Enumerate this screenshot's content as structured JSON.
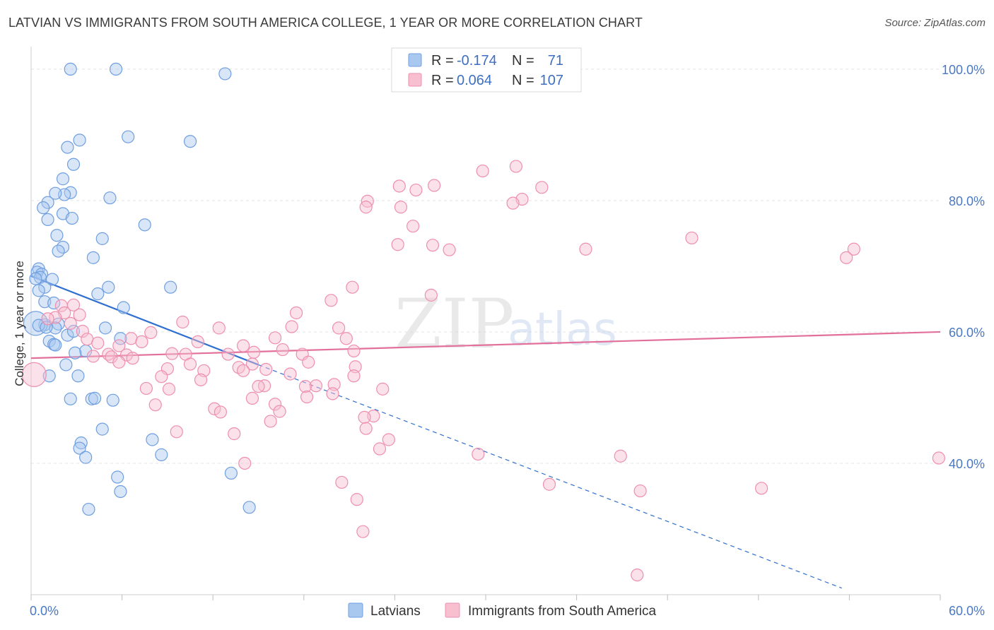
{
  "title": "LATVIAN VS IMMIGRANTS FROM SOUTH AMERICA COLLEGE, 1 YEAR OR MORE CORRELATION CHART",
  "source": "Source: ZipAtlas.com",
  "watermark": {
    "zip": "ZIP",
    "atlas": "atlas"
  },
  "legend_top": [
    {
      "r_label": "R =",
      "r_value": "-0.174",
      "n_label": "N =",
      "n_value": "71",
      "color": "#a9c8f0",
      "stroke": "#6f9fe0"
    },
    {
      "r_label": "R =",
      "r_value": "0.064",
      "n_label": "N =",
      "n_value": "107",
      "color": "#f7bfd0",
      "stroke": "#ee8fae"
    }
  ],
  "legend_bottom": [
    {
      "label": "Latvians",
      "color": "#a9c8f0",
      "stroke": "#6f9fe0"
    },
    {
      "label": "Immigrants from South America",
      "color": "#f7bfd0",
      "stroke": "#ee8fae"
    }
  ],
  "chart_data": {
    "type": "scatter",
    "xlabel": "",
    "ylabel": "College, 1 year or more",
    "xlim": [
      0,
      60
    ],
    "ylim": [
      20,
      103
    ],
    "x_tick_labels": [
      "0.0%",
      "60.0%"
    ],
    "y_ticks": [
      40,
      60,
      80,
      100
    ],
    "y_tick_labels": [
      "40.0%",
      "60.0%",
      "80.0%",
      "100.0%"
    ],
    "grid": true,
    "series": [
      {
        "name": "Latvians",
        "color": "#6f9fe0",
        "fill": "#a9c8f0",
        "trend": {
          "x0": 0.0,
          "y0": 68.5,
          "x1": 15.0,
          "y1": 55.0,
          "dash_to_x": 53.5,
          "dash_to_y": 21.0,
          "color": "#2f6fd0"
        },
        "points": [
          [
            2.6,
            100.0
          ],
          [
            5.6,
            100.0
          ],
          [
            12.8,
            99.3
          ],
          [
            3.2,
            89.2
          ],
          [
            6.4,
            89.7
          ],
          [
            2.4,
            88.1
          ],
          [
            10.5,
            89.0
          ],
          [
            2.8,
            85.5
          ],
          [
            2.1,
            83.3
          ],
          [
            2.6,
            81.2
          ],
          [
            2.2,
            80.9
          ],
          [
            1.6,
            81.1
          ],
          [
            5.2,
            80.4
          ],
          [
            1.1,
            79.7
          ],
          [
            0.8,
            78.9
          ],
          [
            2.1,
            78.0
          ],
          [
            2.7,
            77.3
          ],
          [
            1.1,
            77.1
          ],
          [
            7.5,
            76.3
          ],
          [
            1.7,
            74.7
          ],
          [
            4.7,
            74.2
          ],
          [
            2.1,
            72.9
          ],
          [
            1.8,
            72.3
          ],
          [
            4.1,
            71.3
          ],
          [
            0.5,
            69.6
          ],
          [
            0.4,
            69.1
          ],
          [
            0.7,
            68.8
          ],
          [
            0.6,
            68.3
          ],
          [
            0.3,
            68.1
          ],
          [
            1.4,
            68.0
          ],
          [
            0.9,
            66.8
          ],
          [
            0.5,
            66.3
          ],
          [
            5.1,
            66.8
          ],
          [
            9.2,
            66.8
          ],
          [
            4.4,
            65.8
          ],
          [
            0.9,
            64.6
          ],
          [
            1.5,
            64.4
          ],
          [
            6.1,
            63.7
          ],
          [
            0.9,
            61.1
          ],
          [
            1.8,
            61.2
          ],
          [
            4.9,
            60.6
          ],
          [
            1.6,
            60.6
          ],
          [
            2.4,
            59.5
          ],
          [
            5.9,
            59.0
          ],
          [
            1.2,
            58.6
          ],
          [
            1.5,
            58.1
          ],
          [
            1.6,
            58.0
          ],
          [
            3.6,
            57.1
          ],
          [
            2.9,
            56.8
          ],
          [
            2.3,
            55.0
          ],
          [
            3.1,
            53.3
          ],
          [
            1.2,
            53.3
          ],
          [
            2.6,
            49.8
          ],
          [
            4.0,
            49.8
          ],
          [
            4.2,
            49.9
          ],
          [
            5.4,
            49.6
          ],
          [
            4.7,
            45.2
          ],
          [
            8.0,
            43.6
          ],
          [
            3.3,
            43.1
          ],
          [
            3.2,
            42.3
          ],
          [
            8.6,
            41.3
          ],
          [
            3.6,
            40.9
          ],
          [
            13.2,
            38.5
          ],
          [
            5.7,
            37.9
          ],
          [
            5.9,
            35.7
          ],
          [
            3.8,
            33.0
          ],
          [
            14.4,
            33.3
          ],
          [
            0.3,
            61.3
          ],
          [
            0.5,
            61.0
          ],
          [
            2.8,
            60.1
          ],
          [
            1.0,
            60.7
          ]
        ]
      },
      {
        "name": "Immigrants from South America",
        "color": "#ee8fae",
        "fill": "#f7bfd0",
        "trend": {
          "x0": 0.0,
          "y0": 56.0,
          "x1": 60.0,
          "y1": 60.0,
          "color": "#e2709a"
        },
        "points": [
          [
            32.0,
            85.2
          ],
          [
            29.8,
            84.5
          ],
          [
            26.6,
            82.3
          ],
          [
            24.3,
            82.2
          ],
          [
            25.4,
            81.6
          ],
          [
            33.7,
            82.0
          ],
          [
            32.4,
            80.2
          ],
          [
            31.8,
            79.6
          ],
          [
            24.4,
            79.0
          ],
          [
            22.2,
            79.9
          ],
          [
            22.1,
            79.0
          ],
          [
            25.2,
            76.1
          ],
          [
            43.6,
            74.3
          ],
          [
            26.5,
            73.2
          ],
          [
            24.2,
            73.3
          ],
          [
            36.6,
            72.6
          ],
          [
            27.6,
            72.5
          ],
          [
            54.3,
            72.6
          ],
          [
            53.8,
            71.3
          ],
          [
            21.2,
            66.8
          ],
          [
            26.4,
            65.6
          ],
          [
            19.8,
            64.8
          ],
          [
            2.8,
            64.1
          ],
          [
            2.0,
            64.0
          ],
          [
            2.2,
            62.9
          ],
          [
            1.6,
            62.2
          ],
          [
            3.2,
            62.6
          ],
          [
            17.5,
            62.9
          ],
          [
            1.1,
            62.0
          ],
          [
            10.0,
            61.5
          ],
          [
            2.6,
            61.3
          ],
          [
            17.2,
            60.8
          ],
          [
            20.3,
            60.6
          ],
          [
            12.4,
            60.6
          ],
          [
            3.4,
            60.1
          ],
          [
            7.9,
            59.9
          ],
          [
            16.1,
            59.1
          ],
          [
            6.6,
            59.0
          ],
          [
            20.8,
            59.0
          ],
          [
            3.7,
            58.9
          ],
          [
            7.3,
            58.5
          ],
          [
            11.0,
            58.5
          ],
          [
            4.4,
            58.3
          ],
          [
            5.8,
            57.9
          ],
          [
            14.0,
            57.9
          ],
          [
            16.6,
            57.3
          ],
          [
            21.3,
            57.1
          ],
          [
            9.3,
            56.7
          ],
          [
            14.7,
            56.9
          ],
          [
            5.1,
            56.6
          ],
          [
            6.3,
            56.5
          ],
          [
            10.2,
            56.6
          ],
          [
            13.0,
            56.6
          ],
          [
            5.3,
            56.2
          ],
          [
            17.9,
            56.6
          ],
          [
            4.1,
            56.3
          ],
          [
            6.7,
            56.0
          ],
          [
            5.8,
            55.4
          ],
          [
            18.3,
            55.4
          ],
          [
            10.5,
            55.1
          ],
          [
            14.6,
            55.1
          ],
          [
            13.7,
            54.6
          ],
          [
            15.5,
            54.3
          ],
          [
            21.4,
            54.7
          ],
          [
            9.0,
            54.4
          ],
          [
            11.4,
            54.1
          ],
          [
            14.0,
            54.1
          ],
          [
            17.1,
            53.6
          ],
          [
            8.6,
            53.2
          ],
          [
            11.2,
            52.7
          ],
          [
            21.3,
            53.3
          ],
          [
            18.8,
            51.8
          ],
          [
            15.4,
            51.8
          ],
          [
            15.0,
            51.7
          ],
          [
            18.1,
            51.7
          ],
          [
            20.0,
            52.0
          ],
          [
            7.6,
            51.4
          ],
          [
            9.1,
            51.3
          ],
          [
            23.2,
            51.3
          ],
          [
            19.9,
            50.6
          ],
          [
            18.2,
            50.1
          ],
          [
            14.6,
            49.9
          ],
          [
            16.1,
            49.0
          ],
          [
            8.2,
            48.9
          ],
          [
            12.1,
            48.3
          ],
          [
            12.5,
            47.8
          ],
          [
            16.4,
            47.9
          ],
          [
            22.6,
            47.2
          ],
          [
            22.0,
            47.0
          ],
          [
            15.8,
            46.4
          ],
          [
            22.1,
            45.3
          ],
          [
            9.6,
            44.8
          ],
          [
            13.4,
            44.5
          ],
          [
            23.6,
            43.6
          ],
          [
            23.0,
            42.2
          ],
          [
            29.5,
            41.4
          ],
          [
            38.9,
            41.1
          ],
          [
            14.1,
            40.0
          ],
          [
            59.9,
            40.8
          ],
          [
            20.5,
            37.1
          ],
          [
            34.2,
            36.8
          ],
          [
            40.2,
            35.8
          ],
          [
            48.2,
            36.2
          ],
          [
            21.5,
            34.5
          ],
          [
            21.9,
            29.6
          ],
          [
            40.0,
            23.0
          ],
          [
            0.2,
            53.5
          ]
        ]
      }
    ]
  }
}
